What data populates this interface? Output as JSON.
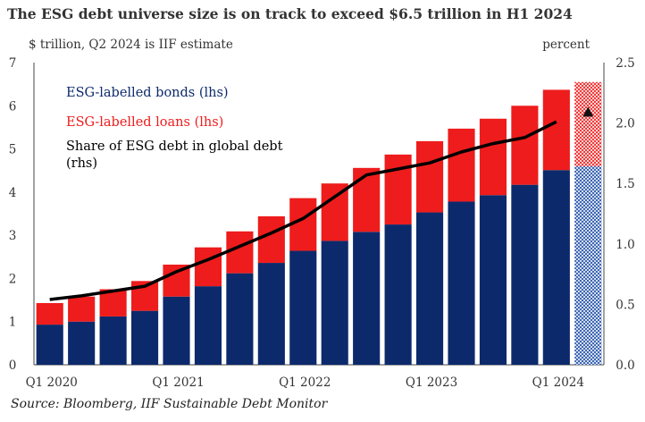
{
  "chart_data": {
    "type": "bar",
    "title": "The ESG debt universe size is on track to exceed $6.5 trillion in H1 2024",
    "left_axis_label": "$ trillion, Q2 2024 is IIF estimate",
    "right_axis_label": "percent",
    "source": "Source:  Bloomberg, IIF Sustainable Debt Monitor",
    "categories": [
      "Q1 2020",
      "Q2 2020",
      "Q3 2020",
      "Q4 2020",
      "Q1 2021",
      "Q2 2021",
      "Q3 2021",
      "Q4 2021",
      "Q1 2022",
      "Q2 2022",
      "Q3 2022",
      "Q4 2022",
      "Q1 2023",
      "Q2 2023",
      "Q3 2023",
      "Q4 2023",
      "Q1 2024",
      "Q2 2024"
    ],
    "x_tick_labels": [
      "Q1 2020",
      "Q1 2021",
      "Q1 2022",
      "Q1 2023",
      "Q1 2024"
    ],
    "left_ylim": [
      0,
      7
    ],
    "left_yticks": [
      "0",
      "1",
      "2",
      "3",
      "4",
      "5",
      "6",
      "7"
    ],
    "right_ylim": [
      0,
      2.5
    ],
    "right_yticks": [
      "0.0",
      "0.5",
      "1.0",
      "1.5",
      "2.0",
      "2.5"
    ],
    "series": [
      {
        "name": "ESG-labelled bonds (lhs)",
        "type": "bar",
        "color": "#0c2a6b",
        "values": [
          0.93,
          1.0,
          1.12,
          1.25,
          1.58,
          1.82,
          2.12,
          2.36,
          2.64,
          2.87,
          3.08,
          3.25,
          3.53,
          3.78,
          3.93,
          4.17,
          4.51,
          4.6
        ]
      },
      {
        "name": "ESG-labelled loans (lhs)",
        "type": "bar",
        "color": "#ee1c1c",
        "values": [
          0.5,
          0.58,
          0.63,
          0.69,
          0.74,
          0.9,
          0.97,
          1.08,
          1.22,
          1.33,
          1.48,
          1.62,
          1.65,
          1.69,
          1.77,
          1.83,
          1.86,
          1.95
        ]
      },
      {
        "name": "Share of ESG debt in global debt (rhs)",
        "type": "line",
        "color": "#000000",
        "values": [
          0.54,
          0.57,
          0.61,
          0.65,
          0.77,
          0.87,
          0.98,
          1.09,
          1.21,
          1.39,
          1.57,
          1.62,
          1.67,
          1.76,
          1.83,
          1.88,
          2.01,
          null
        ]
      }
    ],
    "estimate_point": {
      "category": "Q2 2024",
      "value": 2.09,
      "marker": "triangle"
    },
    "estimate_pattern": "hatched",
    "legend_position": "top-left",
    "grid": false
  }
}
